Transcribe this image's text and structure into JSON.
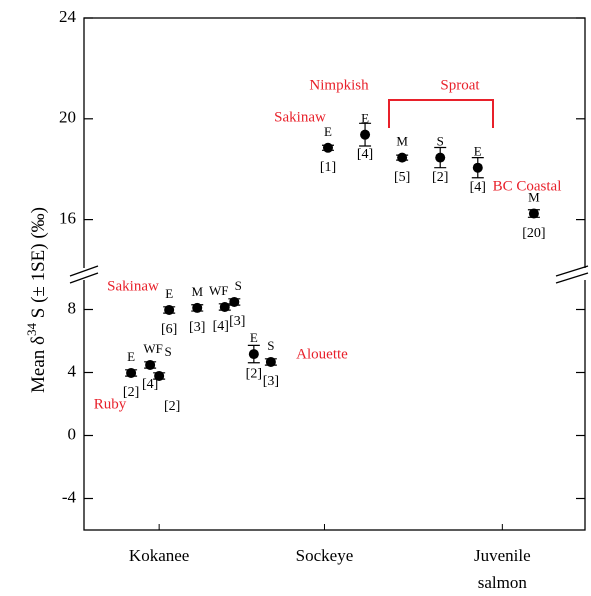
{
  "chart_data": {
    "type": "scatter",
    "ylabel": [
      "Mean δ",
      "34",
      " S (± 1SE) (‰)"
    ],
    "xlim": [
      0,
      10
    ],
    "xticks": [
      {
        "value": 1.5,
        "label": "Kokanee"
      },
      {
        "value": 4.8,
        "label": "Sockeye"
      },
      {
        "value": 8.35,
        "label": "Juvenile\nsalmon"
      }
    ],
    "color": "#000000",
    "annotation_color": "#e8202a",
    "panels": [
      {
        "ylim": [
          14,
          24
        ],
        "yticks": [
          16,
          20,
          24
        ],
        "annotations": [
          "Sakinaw",
          "Nimpkish",
          "Sproat",
          "BC Coastal"
        ],
        "points": [
          {
            "x": 4.87,
            "y": 18.85,
            "error": 0.1,
            "label": "E",
            "n": "[1]"
          },
          {
            "x": 5.61,
            "y": 19.37,
            "error": 0.45,
            "label": "E",
            "n": "[4]"
          },
          {
            "x": 6.35,
            "y": 18.46,
            "error": 0.1,
            "label": "M",
            "n": "[5]"
          },
          {
            "x": 7.11,
            "y": 18.46,
            "error": 0.4,
            "label": "S",
            "n": "[2]"
          },
          {
            "x": 7.86,
            "y": 18.06,
            "error": 0.4,
            "label": "E",
            "n": "[4]"
          },
          {
            "x": 8.98,
            "y": 16.24,
            "error": 0.15,
            "label": "M",
            "n": "[20]"
          }
        ]
      },
      {
        "ylim": [
          -6,
          10
        ],
        "yticks": [
          -4,
          0,
          4,
          8
        ],
        "annotations": [
          "Sakinaw",
          "Alouette",
          "Ruby"
        ],
        "points": [
          {
            "x": 0.94,
            "y": 3.97,
            "error": 0.2,
            "label": "E",
            "n": "[2]"
          },
          {
            "x": 1.32,
            "y": 4.48,
            "error": 0.2,
            "label": "WF",
            "n": "[4]"
          },
          {
            "x": 1.5,
            "y": 3.78,
            "error": 0.2,
            "label": "S",
            "n": "[2]"
          },
          {
            "x": 1.7,
            "y": 7.97,
            "error": 0.2,
            "label": "E",
            "n": "[6]"
          },
          {
            "x": 2.26,
            "y": 8.1,
            "error": 0.2,
            "label": "M",
            "n": "[3]"
          },
          {
            "x": 2.81,
            "y": 8.16,
            "error": 0.2,
            "label": "WF",
            "n": "[4]"
          },
          {
            "x": 3.0,
            "y": 8.48,
            "error": 0.2,
            "label": "S",
            "n": "[3]"
          },
          {
            "x": 3.39,
            "y": 5.17,
            "error": 0.55,
            "label": "E",
            "n": "[2]"
          },
          {
            "x": 3.73,
            "y": 4.67,
            "error": 0.2,
            "label": "S",
            "n": "[3]"
          }
        ]
      }
    ]
  }
}
